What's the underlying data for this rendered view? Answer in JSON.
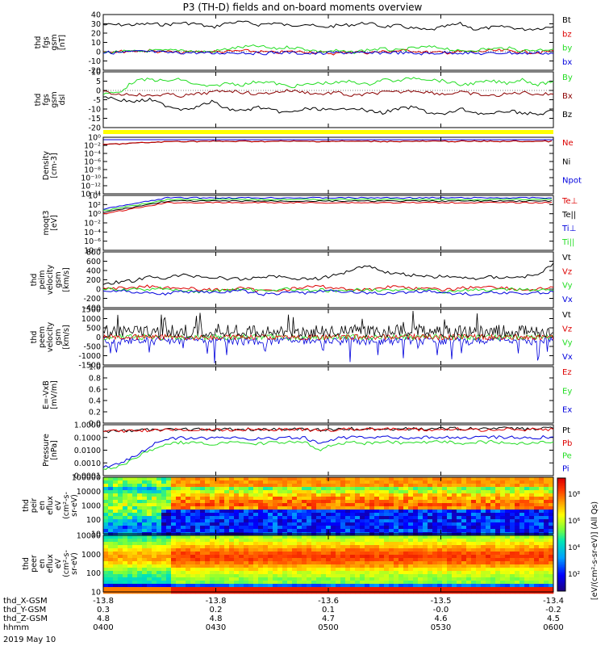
{
  "title": "P3 (TH-D) fields and on-board moments overview",
  "date_label": "2019 May 10",
  "colors": {
    "black": "#000000",
    "red": "#dd0000",
    "green": "#22dd22",
    "blue": "#0000dd",
    "darkred": "#8b0000",
    "yellow": "#ffff00"
  },
  "chart_data": [
    {
      "type": "line",
      "id": "fgs_gsm",
      "ylabel": [
        "thd",
        "fgs",
        "gsm",
        "[nT]"
      ],
      "ylim": [
        -20,
        40
      ],
      "yticks": [
        "40",
        "30",
        "20",
        "10",
        "0",
        "-10",
        "-20"
      ],
      "series": [
        {
          "name": "Bt",
          "color": "#000000",
          "values": [
            29,
            29,
            29,
            30,
            29,
            31,
            30,
            26,
            31,
            32,
            29,
            31,
            28,
            30,
            26,
            28,
            29,
            31,
            27,
            28,
            25,
            23,
            27,
            30,
            24,
            26,
            27,
            24,
            25,
            27
          ]
        },
        {
          "name": "bz",
          "color": "#dd0000",
          "values": [
            1,
            0,
            1,
            1,
            0,
            -1,
            0,
            0,
            0,
            1,
            0,
            -1,
            0,
            0,
            -1,
            -2,
            0,
            -1,
            0,
            1,
            1,
            -1,
            -1,
            0,
            0,
            1,
            1,
            0,
            -1,
            1
          ]
        },
        {
          "name": "by",
          "color": "#22dd22",
          "values": [
            -1,
            0,
            0,
            1,
            1,
            2,
            0,
            0,
            3,
            5,
            6,
            3,
            5,
            3,
            0,
            1,
            -1,
            2,
            3,
            1,
            4,
            5,
            4,
            0,
            2,
            3,
            4,
            1,
            2,
            3
          ]
        },
        {
          "name": "bx",
          "color": "#0000dd",
          "values": [
            -1,
            -1,
            0,
            0,
            -1,
            -1,
            -1,
            -2,
            -1,
            -1,
            -2,
            -1,
            -1,
            -2,
            -2,
            -1,
            -1,
            -2,
            -1,
            -1,
            -2,
            -2,
            -1,
            -1,
            -2,
            -2,
            -1,
            -2,
            -1,
            -2
          ]
        }
      ]
    },
    {
      "type": "line",
      "id": "fgs_gse",
      "ylabel": [
        "thd",
        "fgs",
        "gsm",
        "dsl"
      ],
      "ylim": [
        -20,
        10
      ],
      "yticks": [
        "10",
        "5",
        "0",
        "-5",
        "-10",
        "-15",
        "-20"
      ],
      "series": [
        {
          "name": "By",
          "color": "#22dd22",
          "values": [
            -2,
            -1,
            5,
            6,
            5,
            6,
            3,
            2,
            4,
            3,
            5,
            4,
            2,
            3,
            4,
            4,
            5,
            3,
            6,
            5,
            7,
            6,
            5,
            3,
            4,
            5,
            4,
            6,
            3,
            5
          ]
        },
        {
          "name": "Bx",
          "color": "#8b0000",
          "values": [
            -1,
            -2,
            -2,
            -3,
            -2,
            -3,
            -2,
            -1,
            0,
            -1,
            -2,
            -1,
            0,
            -1,
            -2,
            -1,
            -3,
            -2,
            -1,
            -1,
            0,
            -1,
            -2,
            -1,
            -2,
            -3,
            -2,
            -1,
            -2,
            -2
          ]
        },
        {
          "name": "Bz",
          "color": "#000000",
          "values": [
            -3,
            -5,
            -6,
            -5,
            -8,
            -10,
            -9,
            -6,
            -10,
            -11,
            -9,
            -11,
            -12,
            -10,
            -10,
            -11,
            -9,
            -11,
            -12,
            -10,
            -9,
            -12,
            -13,
            -10,
            -12,
            -13,
            -11,
            -12,
            -13,
            -11
          ]
        }
      ]
    },
    {
      "type": "line",
      "id": "density",
      "ylabel": [
        "Density",
        "[cm-3]"
      ],
      "yticks": [
        "10⁰",
        "10⁻²",
        "10⁻⁴",
        "10⁻⁶",
        "10⁻⁸",
        "10⁻¹⁰",
        "10⁻¹²",
        "10⁻¹⁴"
      ],
      "legend": [
        {
          "name": "Ne",
          "color": "#dd0000"
        },
        {
          "name": "Ni",
          "color": "#000000"
        },
        {
          "name": "Npot",
          "color": "#0000dd"
        }
      ]
    },
    {
      "type": "line",
      "id": "temperature",
      "ylabel": [
        "moqt3",
        "[eV]"
      ],
      "yticks": [
        "10⁴",
        "10²",
        "10⁰",
        "10⁻²",
        "10⁻⁴",
        "10⁻⁶",
        "10⁻⁸"
      ],
      "legend": [
        {
          "name": "Te⊥",
          "color": "#dd0000"
        },
        {
          "name": "Te||",
          "color": "#000000"
        },
        {
          "name": "Ti⊥",
          "color": "#0000dd"
        },
        {
          "name": "Ti||",
          "color": "#22dd22"
        }
      ]
    },
    {
      "type": "line",
      "id": "peim_velocity",
      "ylabel": [
        "thd",
        "peim",
        "velocity",
        "gsm",
        "[km/s]"
      ],
      "ylim": [
        -400,
        800
      ],
      "yticks": [
        "800",
        "600",
        "400",
        "200",
        "0",
        "-200",
        "-400"
      ],
      "series": [
        {
          "name": "Vt",
          "color": "#000000",
          "values": [
            120,
            150,
            180,
            260,
            240,
            300,
            280,
            250,
            230,
            200,
            260,
            280,
            240,
            220,
            230,
            300,
            420,
            520,
            380,
            330,
            300,
            260,
            280,
            240,
            230,
            260,
            250,
            270,
            300,
            560
          ]
        },
        {
          "name": "Vz",
          "color": "#dd0000",
          "values": [
            0,
            20,
            40,
            60,
            40,
            20,
            0,
            -20,
            0,
            20,
            -40,
            -20,
            0,
            40,
            60,
            20,
            0,
            -20,
            40,
            60,
            20,
            0,
            -20,
            20,
            40,
            60,
            20,
            -20,
            0,
            40
          ]
        },
        {
          "name": "Vy",
          "color": "#22dd22",
          "values": [
            0,
            -20,
            -10,
            0,
            20,
            -30,
            -60,
            -40,
            -20,
            0,
            -30,
            -10,
            0,
            -40,
            -20,
            -60,
            -30,
            0,
            -20,
            -40,
            -10,
            0,
            -60,
            -30,
            -20,
            -40,
            -10,
            0,
            -30,
            -20
          ]
        },
        {
          "name": "Vx",
          "color": "#0000dd",
          "values": [
            -20,
            -40,
            -60,
            -80,
            -100,
            -60,
            -40,
            -80,
            -60,
            -40,
            -100,
            -120,
            -60,
            -80,
            -60,
            -40,
            -60,
            -80,
            -100,
            -80,
            -60,
            -40,
            -80,
            -100,
            -120,
            -60,
            -80,
            -100,
            -80,
            -60
          ]
        }
      ]
    },
    {
      "type": "line",
      "id": "peem_velocity",
      "ylabel": [
        "thd",
        "peem",
        "velocity",
        "gsm",
        "[km/s]"
      ],
      "ylim": [
        -1500,
        1500
      ],
      "yticks": [
        "1500",
        "1000",
        "500",
        "0",
        "-500",
        "-1000",
        "-1500"
      ],
      "legend": [
        {
          "name": "Vt",
          "color": "#000000"
        },
        {
          "name": "Vz",
          "color": "#dd0000"
        },
        {
          "name": "Vy",
          "color": "#22dd22"
        },
        {
          "name": "Vx",
          "color": "#0000dd"
        }
      ]
    },
    {
      "type": "line",
      "id": "efield",
      "ylabel": [
        "E=-VxB",
        "[mV/m]"
      ],
      "ylim": [
        0,
        1
      ],
      "yticks": [
        "1.0",
        "0.8",
        "0.6",
        "0.4",
        "0.2",
        "0.0"
      ],
      "legend": [
        {
          "name": "Ez",
          "color": "#dd0000"
        },
        {
          "name": "Ey",
          "color": "#22dd22"
        },
        {
          "name": "Ex",
          "color": "#0000dd"
        }
      ]
    },
    {
      "type": "line",
      "id": "pressure",
      "ylabel": [
        "Pressure",
        "[nPa]"
      ],
      "log": true,
      "yticks": [
        "1.0000",
        "0.1000",
        "0.0100",
        "0.0010",
        "0.0001"
      ],
      "series": [
        {
          "name": "Pt",
          "color": "#000000",
          "values": [
            0.3,
            0.3,
            0.35,
            0.4,
            0.4,
            0.45,
            0.45,
            0.4,
            0.45,
            0.45,
            0.4,
            0.45,
            0.5,
            0.45,
            0.4,
            0.45,
            0.5,
            0.45,
            0.5,
            0.45,
            0.5,
            0.45,
            0.5,
            0.5,
            0.45,
            0.5,
            0.5,
            0.45,
            0.5,
            0.5
          ]
        },
        {
          "name": "Pb",
          "color": "#dd0000",
          "values": [
            0.3,
            0.3,
            0.35,
            0.38,
            0.4,
            0.42,
            0.42,
            0.38,
            0.4,
            0.42,
            0.38,
            0.42,
            0.45,
            0.42,
            0.36,
            0.4,
            0.45,
            0.42,
            0.45,
            0.42,
            0.45,
            0.4,
            0.42,
            0.45,
            0.38,
            0.42,
            0.45,
            0.4,
            0.42,
            0.45
          ]
        },
        {
          "name": "Pe",
          "color": "#22dd22",
          "values": [
            0.0003,
            0.0005,
            0.002,
            0.01,
            0.03,
            0.04,
            0.035,
            0.03,
            0.04,
            0.035,
            0.03,
            0.04,
            0.045,
            0.04,
            0.01,
            0.035,
            0.04,
            0.035,
            0.045,
            0.04,
            0.035,
            0.04,
            0.045,
            0.035,
            0.04,
            0.045,
            0.04,
            0.035,
            0.04,
            0.045
          ]
        },
        {
          "name": "Pi",
          "color": "#0000dd",
          "values": [
            0.0005,
            0.0008,
            0.003,
            0.02,
            0.08,
            0.09,
            0.085,
            0.08,
            0.09,
            0.085,
            0.08,
            0.09,
            0.1,
            0.095,
            0.03,
            0.09,
            0.1,
            0.09,
            0.11,
            0.1,
            0.09,
            0.1,
            0.11,
            0.09,
            0.1,
            0.11,
            0.1,
            0.09,
            0.1,
            0.11
          ]
        }
      ]
    },
    {
      "type": "heatmap",
      "id": "peir_spectrogram",
      "ylabel": [
        "thd",
        "peir",
        "en",
        "eflux",
        "eV",
        "(cm²-s-",
        "sr-eV)"
      ],
      "yticks": [
        "100000",
        "10000",
        "1000",
        "100",
        "10"
      ]
    },
    {
      "type": "heatmap",
      "id": "peer_spectrogram",
      "ylabel": [
        "thd",
        "peer",
        "en",
        "eflux",
        "eV",
        "(cm²-s-",
        "sr-eV)"
      ],
      "yticks": [
        "10000",
        "1000",
        "100",
        "10"
      ]
    }
  ],
  "colorbar": {
    "label": "[eV/(cm²-s-sr-eV)] (All Qs)",
    "ticks": [
      "10⁸",
      "10⁶",
      "10⁴",
      "10²"
    ]
  },
  "xaxis": {
    "tick_labels": [
      "0400",
      "0430",
      "0500",
      "0530",
      "0600"
    ],
    "rows": [
      {
        "label": "thd_X-GSM",
        "values": [
          "-13.8",
          "-13.8",
          "-13.6",
          "-13.5",
          "-13.4"
        ]
      },
      {
        "label": "thd_Y-GSM",
        "values": [
          "0.3",
          "0.2",
          "0.1",
          "-0.0",
          "-0.2"
        ]
      },
      {
        "label": "thd_Z-GSM",
        "values": [
          "4.8",
          "4.8",
          "4.7",
          "4.6",
          "4.5"
        ]
      },
      {
        "label": "hhmm",
        "values": [
          "0400",
          "0430",
          "0500",
          "0530",
          "0600"
        ]
      }
    ]
  }
}
